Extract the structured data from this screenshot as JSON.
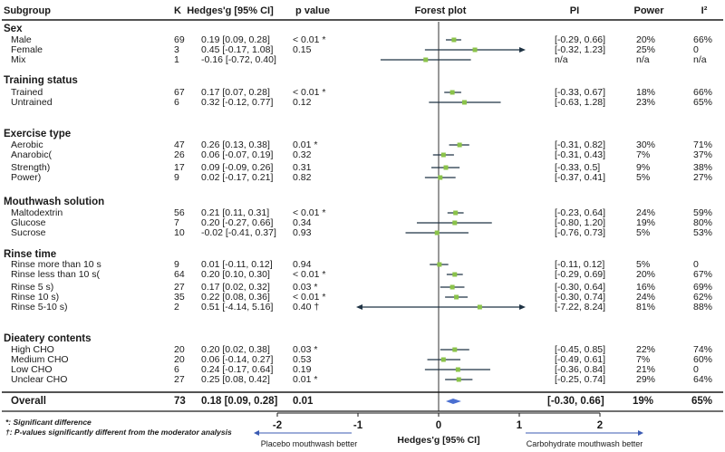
{
  "headers": {
    "subgroup": "Subgroup",
    "k": "K",
    "effect": "Hedges'g [95% CI]",
    "p": "p value",
    "forest": "Forest plot",
    "pi": "PI",
    "power": "Power",
    "i2": "I²"
  },
  "sections": [
    {
      "title": "Sex",
      "rows": [
        {
          "label": "Male",
          "k": "69",
          "g": "0.19 [0.09, 0.28]",
          "p": "< 0.01 *",
          "pi": "[-0.29, 0.66]",
          "power": "20%",
          "i2": "66%"
        },
        {
          "label": "Female",
          "k": "3",
          "g": "0.45 [-0.17, 1.08]",
          "p": "0.15",
          "pi": "[-0.32, 1.23]",
          "power": "25%",
          "i2": "0"
        },
        {
          "label": "Mix",
          "k": "1",
          "g": "-0.16 [-0.72, 0.40]",
          "p": "",
          "pi": "n/a",
          "power": "n/a",
          "i2": "n/a"
        }
      ]
    },
    {
      "title": "Training status",
      "rows": [
        {
          "label": "Trained",
          "k": "67",
          "g": "0.17 [0.07, 0.28]",
          "p": "< 0.01 *",
          "pi": "[-0.33, 0.67]",
          "power": "18%",
          "i2": "66%"
        },
        {
          "label": "Untrained",
          "k": "6",
          "g": "0.32 [-0.12, 0.77]",
          "p": "0.12",
          "pi": "[-0.63, 1.28]",
          "power": "23%",
          "i2": "65%"
        }
      ]
    },
    {
      "title": "Exercise type",
      "rows": [
        {
          "label": "Aerobic",
          "k": "47",
          "g": "0.26 [0.13, 0.38]",
          "p": "0.01 *",
          "pi": "[-0.31, 0.82]",
          "power": "30%",
          "i2": "71%"
        },
        {
          "label": "Anarobic(",
          "k": "26",
          "g": "0.06 [-0.07, 0.19]",
          "p": "0.32",
          "pi": "[-0.31, 0.43]",
          "power": "7%",
          "i2": "37%"
        },
        {
          "label": "Strength)",
          "k": "17",
          "g": "0.09 [-0.09, 0.26]",
          "p": "0.31",
          "pi": "[-0.33, 0.5]",
          "power": "9%",
          "i2": "38%"
        },
        {
          "label": "Power)",
          "k": "9",
          "g": "0.02 [-0.17, 0.21]",
          "p": "0.82",
          "pi": "[-0.37, 0.41]",
          "power": "5%",
          "i2": "27%"
        }
      ]
    },
    {
      "title": "Mouthwash solution",
      "rows": [
        {
          "label": "Maltodextrin",
          "k": "56",
          "g": "0.21 [0.11, 0.31]",
          "p": "< 0.01 *",
          "pi": "[-0.23, 0.64]",
          "power": "24%",
          "i2": "59%"
        },
        {
          "label": "Glucose",
          "k": "7",
          "g": "0.20 [-0.27, 0.66]",
          "p": "0.34",
          "pi": "[-0.80, 1.20]",
          "power": "19%",
          "i2": "80%"
        },
        {
          "label": "Sucrose",
          "k": "10",
          "g": "-0.02 [-0.41, 0.37]",
          "p": "0.93",
          "pi": "[-0.76, 0.73]",
          "power": "5%",
          "i2": "53%"
        }
      ]
    },
    {
      "title": "Rinse time",
      "rows": [
        {
          "label": "Rinse more than 10 s",
          "k": "9",
          "g": "0.01 [-0.11, 0.12]",
          "p": "0.94",
          "pi": "[-0.11, 0.12]",
          "power": "5%",
          "i2": "0"
        },
        {
          "label": "Rinse less than 10 s(",
          "k": "64",
          "g": "0.20 [0.10, 0.30]",
          "p": "< 0.01 *",
          "pi": "[-0.29, 0.69]",
          "power": "20%",
          "i2": "67%"
        },
        {
          "label": "Rinse 5 s)",
          "k": "27",
          "g": "0.17 [0.02, 0.32]",
          "p": "0.03 *",
          "pi": "[-0.30, 0.64]",
          "power": "16%",
          "i2": "69%"
        },
        {
          "label": "Rinse 10 s)",
          "k": "35",
          "g": "0.22 [0.08, 0.36]",
          "p": "< 0.01 *",
          "pi": "[-0.30, 0.74]",
          "power": "24%",
          "i2": "62%"
        },
        {
          "label": "Rinse 5-10 s)",
          "k": "2",
          "g": "0.51 [-4.14, 5.16]",
          "p": "0.40 †",
          "pi": "[-7.22, 8.24]",
          "power": "81%",
          "i2": "88%"
        }
      ]
    },
    {
      "title": "Dieatery contents",
      "rows": [
        {
          "label": "High CHO",
          "k": "20",
          "g": "0.20 [0.02, 0.38]",
          "p": "0.03 *",
          "pi": "[-0.45, 0.85]",
          "power": "22%",
          "i2": "74%"
        },
        {
          "label": "Medium CHO",
          "k": "20",
          "g": "0.06 [-0.14, 0.27]",
          "p": "0.53",
          "pi": "[-0.49, 0.61]",
          "power": "7%",
          "i2": "60%"
        },
        {
          "label": "Low CHO",
          "k": "6",
          "g": "0.24 [-0.17, 0.64]",
          "p": "0.19",
          "pi": "[-0.36, 0.84]",
          "power": "21%",
          "i2": "0"
        },
        {
          "label": "Unclear CHO",
          "k": "27",
          "g": "0.25 [0.08, 0.42]",
          "p": "0.01 *",
          "pi": "[-0.25, 0.74]",
          "power": "29%",
          "i2": "64%"
        }
      ]
    }
  ],
  "overall": {
    "label": "Overall",
    "k": "73",
    "g": "0.18 [0.09, 0.28]",
    "p": "0.01",
    "pi": "[-0.30, 0.66]",
    "power": "19%",
    "i2": "65%"
  },
  "footnotes": [
    "*: Significant difference",
    "†: P-values significantly different from the moderator analysis"
  ],
  "axis": {
    "label": "Hedges'g [95% CI]",
    "ticks": [
      "-2",
      "-1",
      "0",
      "1",
      "2"
    ],
    "left_label": "Placebo mouthwash better",
    "right_label": "Carbohydrate mouthwash better"
  },
  "colors": {
    "text": "#1a1a1a",
    "line": "#1a1a1a",
    "marker": "#8bc34a",
    "ci": "#1f3344",
    "overall_marker": "#4a6fd1",
    "side_arrow": "#3b5bb3"
  },
  "chart_data": {
    "type": "forest",
    "xlim": [
      -2,
      2
    ],
    "xticks": [
      -2,
      -1,
      0,
      1,
      2
    ],
    "xlabel": "Hedges'g [95% CI]",
    "reference_line": 0,
    "points": [
      {
        "group": "Sex",
        "label": "Male",
        "estimate": 0.19,
        "lower": 0.09,
        "upper": 0.28
      },
      {
        "group": "Sex",
        "label": "Female",
        "estimate": 0.45,
        "lower": -0.17,
        "upper": 1.08
      },
      {
        "group": "Sex",
        "label": "Mix",
        "estimate": -0.16,
        "lower": -0.72,
        "upper": 0.4
      },
      {
        "group": "Training status",
        "label": "Trained",
        "estimate": 0.17,
        "lower": 0.07,
        "upper": 0.28
      },
      {
        "group": "Training status",
        "label": "Untrained",
        "estimate": 0.32,
        "lower": -0.12,
        "upper": 0.77
      },
      {
        "group": "Exercise type",
        "label": "Aerobic",
        "estimate": 0.26,
        "lower": 0.13,
        "upper": 0.38
      },
      {
        "group": "Exercise type",
        "label": "Anarobic(",
        "estimate": 0.06,
        "lower": -0.07,
        "upper": 0.19
      },
      {
        "group": "Exercise type",
        "label": "Strength)",
        "estimate": 0.09,
        "lower": -0.09,
        "upper": 0.26
      },
      {
        "group": "Exercise type",
        "label": "Power)",
        "estimate": 0.02,
        "lower": -0.17,
        "upper": 0.21
      },
      {
        "group": "Mouthwash solution",
        "label": "Maltodextrin",
        "estimate": 0.21,
        "lower": 0.11,
        "upper": 0.31
      },
      {
        "group": "Mouthwash solution",
        "label": "Glucose",
        "estimate": 0.2,
        "lower": -0.27,
        "upper": 0.66
      },
      {
        "group": "Mouthwash solution",
        "label": "Sucrose",
        "estimate": -0.02,
        "lower": -0.41,
        "upper": 0.37
      },
      {
        "group": "Rinse time",
        "label": "Rinse more than 10 s",
        "estimate": 0.01,
        "lower": -0.11,
        "upper": 0.12
      },
      {
        "group": "Rinse time",
        "label": "Rinse less than 10 s(",
        "estimate": 0.2,
        "lower": 0.1,
        "upper": 0.3
      },
      {
        "group": "Rinse time",
        "label": "Rinse 5 s)",
        "estimate": 0.17,
        "lower": 0.02,
        "upper": 0.32
      },
      {
        "group": "Rinse time",
        "label": "Rinse 10 s)",
        "estimate": 0.22,
        "lower": 0.08,
        "upper": 0.36
      },
      {
        "group": "Rinse time",
        "label": "Rinse 5-10 s)",
        "estimate": 0.51,
        "lower": -4.14,
        "upper": 5.16
      },
      {
        "group": "Dieatery contents",
        "label": "High CHO",
        "estimate": 0.2,
        "lower": 0.02,
        "upper": 0.38
      },
      {
        "group": "Dieatery contents",
        "label": "Medium CHO",
        "estimate": 0.06,
        "lower": -0.14,
        "upper": 0.27
      },
      {
        "group": "Dieatery contents",
        "label": "Low CHO",
        "estimate": 0.24,
        "lower": -0.17,
        "upper": 0.64
      },
      {
        "group": "Dieatery contents",
        "label": "Unclear CHO",
        "estimate": 0.25,
        "lower": 0.08,
        "upper": 0.42
      }
    ],
    "overall": {
      "label": "Overall",
      "estimate": 0.18,
      "lower": 0.09,
      "upper": 0.28
    }
  }
}
